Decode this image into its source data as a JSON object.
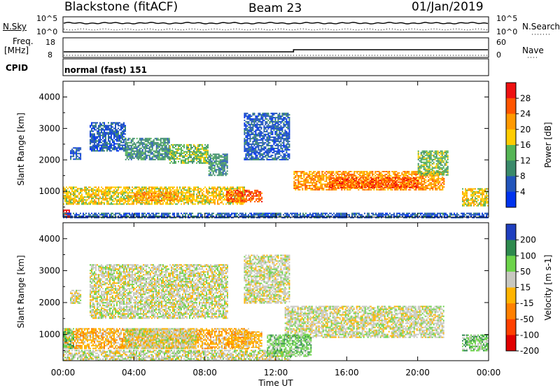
{
  "header": {
    "radar": "Blackstone (fitACF)",
    "beam": "Beam 23",
    "date": "01/Jan/2019"
  },
  "panels": {
    "nsky": {
      "label": "N.Sky",
      "tick_top": "10^5",
      "tick_bottom": "10^0",
      "right_label": "N.Search",
      "right_tick_top": "10^5",
      "right_tick_bottom": "10^0"
    },
    "freq": {
      "label": "Freq.",
      "unit": "[MHz]",
      "tick_top": "18",
      "tick_bottom": "8",
      "right_label": "Nave",
      "right_tick_top": "60",
      "right_tick_bottom": "0"
    },
    "cpid": {
      "label": "CPID",
      "value": "normal (fast) 151"
    }
  },
  "chart_data": [
    {
      "type": "heatmap",
      "panel": "power",
      "ylabel": "Slant Range [km]",
      "xlabel": "Time UT",
      "xticks": [
        "00:00",
        "04:00",
        "08:00",
        "12:00",
        "16:00",
        "20:00",
        "00:00"
      ],
      "yticks": [
        "1000",
        "2000",
        "3000",
        "4000"
      ],
      "ylim": [
        180,
        4500
      ],
      "x_hours": [
        0,
        24
      ],
      "colorbar": {
        "label": "Power [dB]",
        "ticks": [
          "4",
          "8",
          "12",
          "16",
          "20",
          "24",
          "28"
        ],
        "colors": [
          "#0033ee",
          "#2255bb",
          "#3a8a6a",
          "#55b555",
          "#ffcc00",
          "#ff9900",
          "#ff5500",
          "#ee1111"
        ]
      },
      "regions": [
        {
          "t0": 0.0,
          "t1": 10.2,
          "r0": 600,
          "r1": 1150,
          "level": 4
        },
        {
          "t0": 4.0,
          "t1": 6.5,
          "r0": 700,
          "r1": 1000,
          "level": 5
        },
        {
          "t0": 9.2,
          "t1": 11.2,
          "r0": 650,
          "r1": 1050,
          "level": 6
        },
        {
          "t0": 0.0,
          "t1": 0.4,
          "r0": 180,
          "r1": 420,
          "level": 7
        },
        {
          "t0": 1.5,
          "t1": 3.5,
          "r0": 2300,
          "r1": 3200,
          "level": 1
        },
        {
          "t0": 3.5,
          "t1": 6.0,
          "r0": 2000,
          "r1": 2700,
          "level": 2
        },
        {
          "t0": 6.0,
          "t1": 8.2,
          "r0": 1900,
          "r1": 2500,
          "level": 3
        },
        {
          "t0": 8.2,
          "t1": 9.3,
          "r0": 1500,
          "r1": 2200,
          "level": 2
        },
        {
          "t0": 10.2,
          "t1": 12.8,
          "r0": 2000,
          "r1": 3500,
          "level": 1
        },
        {
          "t0": 0.4,
          "t1": 1.0,
          "r0": 2000,
          "r1": 2400,
          "level": 1
        },
        {
          "t0": 13.0,
          "t1": 21.5,
          "r0": 1050,
          "r1": 1650,
          "level": 5
        },
        {
          "t0": 15.0,
          "t1": 20.0,
          "r0": 1100,
          "r1": 1450,
          "level": 6
        },
        {
          "t0": 20.0,
          "t1": 21.7,
          "r0": 1500,
          "r1": 2300,
          "level": 3
        },
        {
          "t0": 22.5,
          "t1": 24.0,
          "r0": 550,
          "r1": 1100,
          "level": 4
        },
        {
          "t0": 0.0,
          "t1": 24.0,
          "r0": 180,
          "r1": 320,
          "level": 1
        }
      ]
    },
    {
      "type": "heatmap",
      "panel": "velocity",
      "ylabel": "Slant Range [km]",
      "xlabel": "Time UT",
      "xticks": [
        "00:00",
        "04:00",
        "08:00",
        "12:00",
        "16:00",
        "20:00",
        "00:00"
      ],
      "yticks": [
        "1000",
        "2000",
        "3000",
        "4000"
      ],
      "ylim": [
        180,
        4500
      ],
      "x_hours": [
        0,
        24
      ],
      "colorbar": {
        "label": "Velocity [m s-1]",
        "ticks": [
          "200",
          "100",
          "50",
          "15",
          "-15",
          "-50",
          "-100",
          "-200"
        ],
        "colors": [
          "#1f3fbf",
          "#2e8a4e",
          "#6cd34a",
          "#c8c8c0",
          "#ffb400",
          "#ff8000",
          "#ff4000",
          "#e00000"
        ]
      },
      "regions": [
        {
          "t0": 0.0,
          "t1": 10.5,
          "r0": 550,
          "r1": 1200,
          "level": 4
        },
        {
          "t0": 3.5,
          "t1": 7.5,
          "r0": 550,
          "r1": 1200,
          "level": 3
        },
        {
          "t0": 9.5,
          "t1": 11.2,
          "r0": 550,
          "r1": 1100,
          "level": 4
        },
        {
          "t0": 0.0,
          "t1": 0.6,
          "r0": 550,
          "r1": 1200,
          "level": 2
        },
        {
          "t0": 0.0,
          "t1": 12.8,
          "r0": 180,
          "r1": 520,
          "level": 3
        },
        {
          "t0": 1.5,
          "t1": 9.3,
          "r0": 1500,
          "r1": 3200,
          "level": 3
        },
        {
          "t0": 10.2,
          "t1": 12.8,
          "r0": 2000,
          "r1": 3500,
          "level": 3
        },
        {
          "t0": 0.4,
          "t1": 1.0,
          "r0": 2000,
          "r1": 2400,
          "level": 3
        },
        {
          "t0": 12.5,
          "t1": 21.5,
          "r0": 900,
          "r1": 1900,
          "level": 3
        },
        {
          "t0": 11.5,
          "t1": 14.0,
          "r0": 300,
          "r1": 1000,
          "level": 2
        },
        {
          "t0": 22.5,
          "t1": 24.0,
          "r0": 500,
          "r1": 1000,
          "level": 2
        }
      ]
    }
  ]
}
